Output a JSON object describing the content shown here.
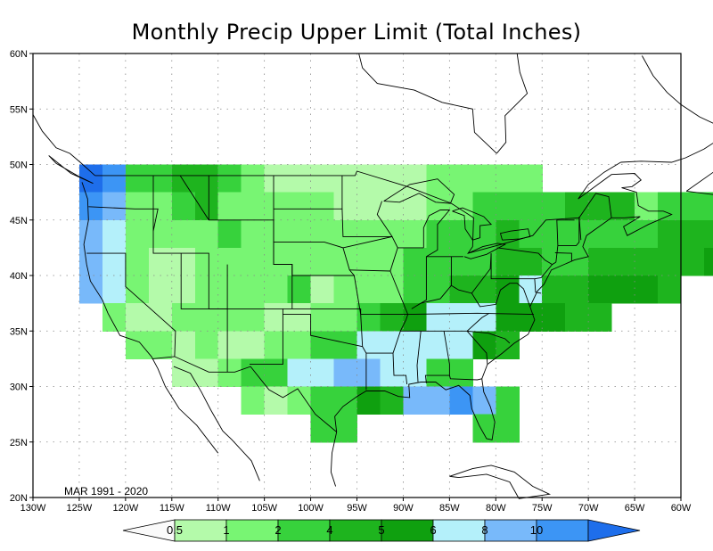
{
  "title": "Monthly Precip Upper Limit (Total Inches)",
  "period_label": "MAR 1991 - 2020",
  "axes": {
    "lon_ticks": [
      "130W",
      "125W",
      "120W",
      "115W",
      "110W",
      "105W",
      "100W",
      "95W",
      "90W",
      "85W",
      "80W",
      "75W",
      "70W",
      "65W",
      "60W"
    ],
    "lat_ticks": [
      "20N",
      "25N",
      "30N",
      "35N",
      "40N",
      "45N",
      "50N",
      "55N",
      "60N"
    ]
  },
  "colorbar": {
    "labels": [
      "0.5",
      "1",
      "2",
      "4",
      "5",
      "6",
      "8",
      "10"
    ],
    "colors": [
      "#fafafa",
      "#b4faaa",
      "#78f573",
      "#37d23c",
      "#1eb41e",
      "#0fa00f",
      "#b4f0fa",
      "#78b9fa",
      "#3c95f5",
      "#1e6eeb"
    ]
  },
  "colors": {
    "c0": "#b4faaa",
    "c1": "#78f573",
    "c2": "#37d23c",
    "c3": "#1eb41e",
    "c4": "#0fa00f",
    "c5": "#b4f0fa",
    "c6": "#78b9fa",
    "c7": "#3c95f5",
    "c8": "#1e6eeb"
  }
}
